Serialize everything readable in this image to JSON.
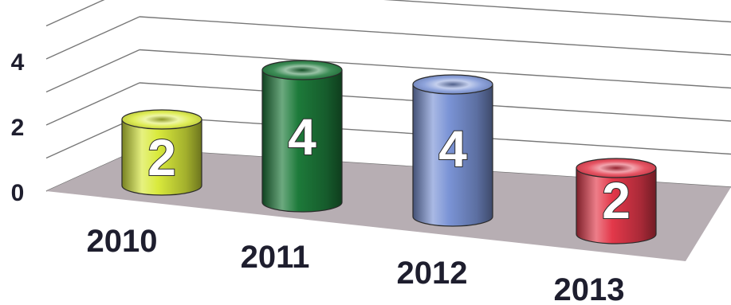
{
  "chart_data": {
    "type": "bar",
    "categories": [
      "2010",
      "2011",
      "2012",
      "2013"
    ],
    "values": [
      2,
      4,
      4,
      2
    ],
    "data_labels": [
      "2",
      "4",
      "4",
      "2"
    ],
    "y_ticks": [
      "0",
      "2",
      "4"
    ],
    "ylim": [
      0,
      5
    ],
    "grid": true,
    "legend": false,
    "colors": [
      "#d9ea3c",
      "#1d7a3a",
      "#7b94d6",
      "#e3384a"
    ]
  }
}
